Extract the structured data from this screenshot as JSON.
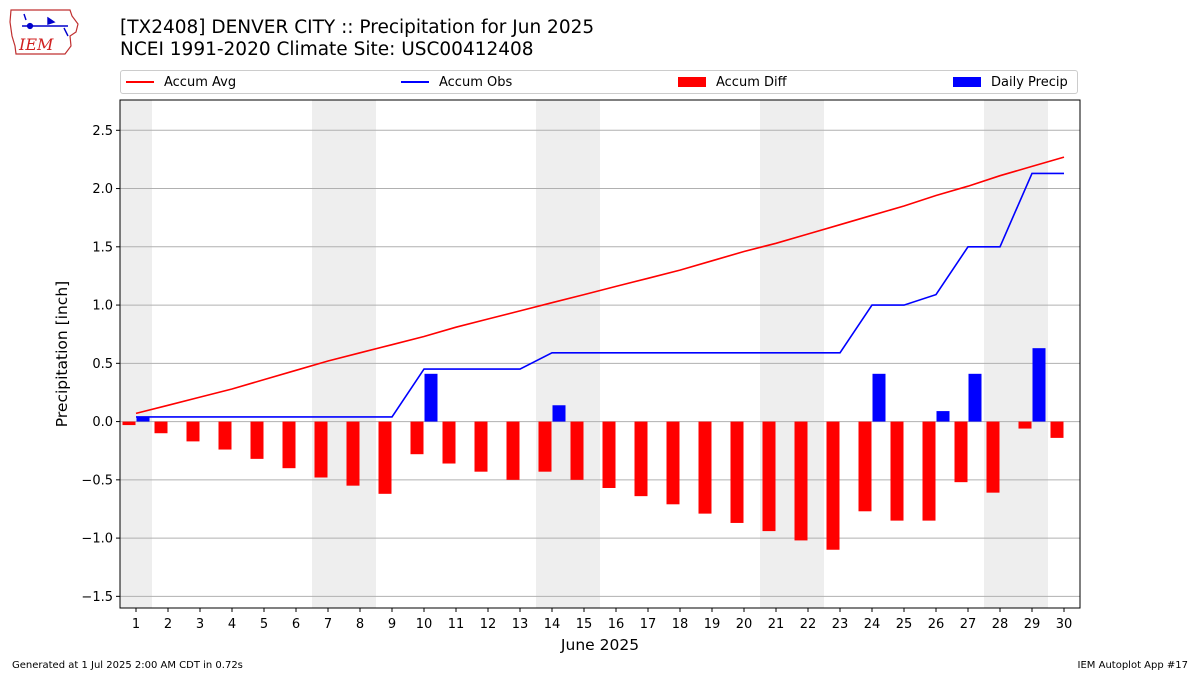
{
  "header": {
    "logo_text": "IEM",
    "title_line1": "[TX2408] DENVER CITY :: Precipitation for Jun 2025",
    "title_line2": "NCEI 1991-2020 Climate Site: USC00412408"
  },
  "legend": [
    {
      "label": "Accum Avg",
      "kind": "line",
      "color": "#ff0000"
    },
    {
      "label": "Accum Obs",
      "kind": "line",
      "color": "#0000ff"
    },
    {
      "label": "Accum Diff",
      "kind": "patch",
      "color": "#ff0000"
    },
    {
      "label": "Daily Precip",
      "kind": "patch",
      "color": "#0000ff"
    }
  ],
  "footer": {
    "left": "Generated at 1 Jul 2025 2:00 AM CDT in 0.72s",
    "right": "IEM Autoplot App #17"
  },
  "chart_data": {
    "type": "bar",
    "xlabel": "June 2025",
    "ylabel": "Precipitation [inch]",
    "xlim": [
      0.5,
      30.5
    ],
    "ylim": [
      -1.6,
      2.76
    ],
    "yticks": [
      -1.5,
      -1.0,
      -0.5,
      0.0,
      0.5,
      1.0,
      1.5,
      2.0,
      2.5
    ],
    "ytick_labels": [
      "−1.5",
      "−1.0",
      "−0.5",
      "0.0",
      "0.5",
      "1.0",
      "1.5",
      "2.0",
      "2.5"
    ],
    "grid": true,
    "weekend_shading": [
      [
        0.5,
        1.5
      ],
      [
        6.5,
        8.5
      ],
      [
        13.5,
        15.5
      ],
      [
        20.5,
        22.5
      ],
      [
        27.5,
        29.5
      ]
    ],
    "shade_color": "#eeeeee",
    "categories": [
      "1",
      "2",
      "3",
      "4",
      "5",
      "6",
      "7",
      "8",
      "9",
      "10",
      "11",
      "12",
      "13",
      "14",
      "15",
      "16",
      "17",
      "18",
      "19",
      "20",
      "21",
      "22",
      "23",
      "24",
      "25",
      "26",
      "27",
      "28",
      "29",
      "30"
    ],
    "series": [
      {
        "name": "Accum Avg",
        "kind": "line",
        "color": "#ff0000",
        "values": [
          0.07,
          0.14,
          0.21,
          0.28,
          0.36,
          0.44,
          0.52,
          0.59,
          0.66,
          0.73,
          0.81,
          0.88,
          0.95,
          1.02,
          1.09,
          1.16,
          1.23,
          1.3,
          1.38,
          1.46,
          1.53,
          1.61,
          1.69,
          1.77,
          1.85,
          1.94,
          2.02,
          2.11,
          2.19,
          2.27
        ]
      },
      {
        "name": "Accum Obs",
        "kind": "line",
        "color": "#0000ff",
        "values": [
          0.04,
          0.04,
          0.04,
          0.04,
          0.04,
          0.04,
          0.04,
          0.04,
          0.04,
          0.45,
          0.45,
          0.45,
          0.45,
          0.59,
          0.59,
          0.59,
          0.59,
          0.59,
          0.59,
          0.59,
          0.59,
          0.59,
          0.59,
          1.0,
          1.0,
          1.09,
          1.5,
          1.5,
          2.13,
          2.13
        ]
      },
      {
        "name": "Accum Diff",
        "kind": "bar",
        "color": "#ff0000",
        "values": [
          -0.03,
          -0.1,
          -0.17,
          -0.24,
          -0.32,
          -0.4,
          -0.48,
          -0.55,
          -0.62,
          -0.28,
          -0.36,
          -0.43,
          -0.5,
          -0.43,
          -0.5,
          -0.57,
          -0.64,
          -0.71,
          -0.79,
          -0.87,
          -0.94,
          -1.02,
          -1.1,
          -0.77,
          -0.85,
          -0.85,
          -0.52,
          -0.61,
          -0.06,
          -0.14
        ]
      },
      {
        "name": "Daily Precip",
        "kind": "bar",
        "color": "#0000ff",
        "values": [
          0.04,
          0,
          0,
          0,
          0,
          0,
          0,
          0,
          0,
          0.41,
          0,
          0,
          0,
          0.14,
          0,
          0,
          0,
          0,
          0,
          0,
          0,
          0,
          0,
          0.41,
          0,
          0.09,
          0.41,
          0,
          0.63,
          0
        ]
      }
    ]
  }
}
